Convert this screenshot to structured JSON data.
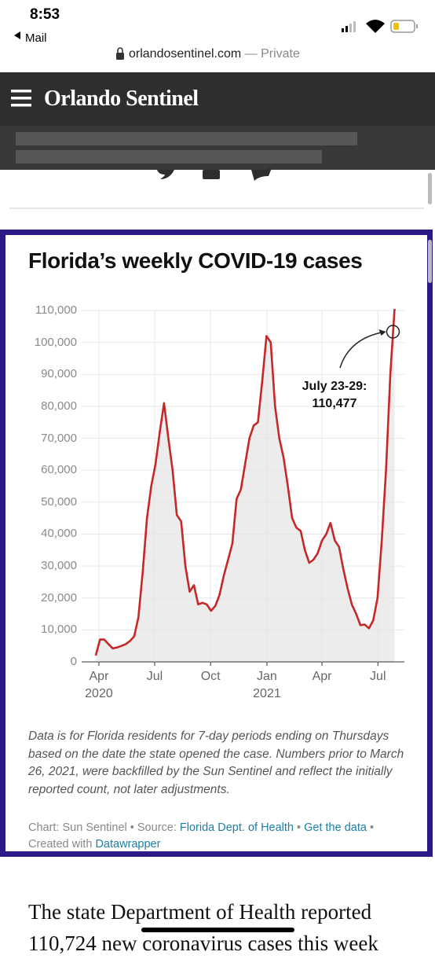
{
  "status_bar": {
    "time": "8:53",
    "back": "Mail"
  },
  "url_bar": {
    "domain": "orlandosentinel.com",
    "note": "— Private"
  },
  "header": {
    "title": "Orlando Sentinel"
  },
  "chart_data": {
    "type": "area-line",
    "title": "Florida’s weekly COVID-19 cases",
    "values": [
      2000,
      7000,
      7000,
      5500,
      4200,
      4500,
      5000,
      5500,
      6500,
      8000,
      14000,
      28000,
      45000,
      55000,
      62000,
      72000,
      81000,
      70000,
      60000,
      46000,
      44000,
      30000,
      22000,
      24000,
      18000,
      18500,
      18000,
      16000,
      17500,
      21000,
      27000,
      32000,
      37000,
      51000,
      54000,
      62000,
      70000,
      74000,
      75000,
      88000,
      102000,
      100000,
      80000,
      70000,
      64000,
      55000,
      45000,
      42000,
      41000,
      35000,
      31000,
      32000,
      34000,
      38000,
      40000,
      43500,
      38000,
      36000,
      29000,
      23000,
      18000,
      15000,
      11500,
      11700,
      10500,
      13000,
      20000,
      38000,
      60000,
      90000,
      110477
    ],
    "color": "#c62828",
    "area_color": "#ececec",
    "xlim": [
      -3.3,
      72.3
    ],
    "xticks": [
      {
        "value": 0.74,
        "label": "Apr\n2020"
      },
      {
        "value": 13.8,
        "label": "Jul"
      },
      {
        "value": 26.9,
        "label": "Oct"
      },
      {
        "value": 40.1,
        "label": "Jan\n2021"
      },
      {
        "value": 53.0,
        "label": "Apr"
      },
      {
        "value": 66.1,
        "label": "Jul"
      }
    ],
    "ylim": [
      0,
      110000
    ],
    "yticks": [
      0,
      {
        "value": 10000,
        "label": "10,000"
      },
      {
        "value": 20000,
        "label": "20,000"
      },
      {
        "value": 30000,
        "label": "30,000"
      },
      {
        "value": 40000,
        "label": "40,000"
      },
      {
        "value": 50000,
        "label": "50,000"
      },
      {
        "value": 60000,
        "label": "60,000"
      },
      {
        "value": 70000,
        "label": "70,000"
      },
      {
        "value": 80000,
        "label": "80,000"
      },
      {
        "value": 90000,
        "label": "90,000"
      },
      {
        "value": 100000,
        "label": "100,000"
      },
      {
        "value": 110000,
        "label": "110,000"
      }
    ],
    "grid": true,
    "annotation": "July 23-29: 110,477",
    "notes": "Data is for Florida residents for 7-day periods ending on Thursdays based on the date the state opened the case. Numbers prior to March 26, 2021, were backfilled by the Sun Sentinel and reflect the initially reported count, not later adjustments.",
    "footer": {
      "credit": "Chart: Sun Sentinel",
      "separator": "•",
      "source_label": "Source:",
      "source": "Florida Dept. of Health",
      "get_data": "Get the data",
      "created_with": "Created with",
      "tool": "Datawrapper"
    }
  },
  "article": {
    "text": "The state Department of Health reported 110,724 new coronavirus cases this week"
  }
}
